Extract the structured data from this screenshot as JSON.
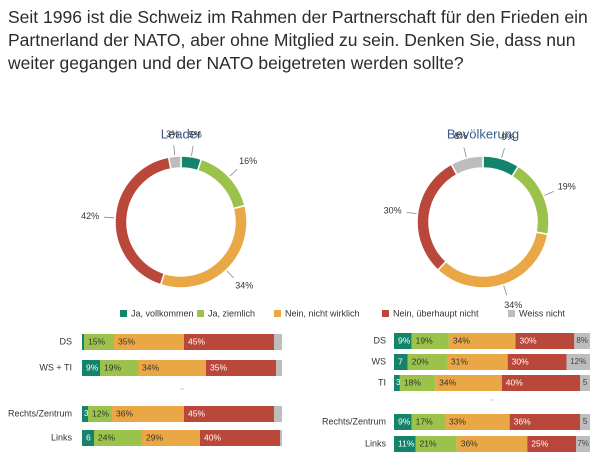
{
  "question": "Seit 1996 ist die Schweiz im Rahmen der Partnerschaft für den Frieden ein Partnerland der NATO, aber ohne Mitglied zu sein. Denken Sie, dass nun weiter gegangen und der NATO beigetreten werden sollte?",
  "colors": {
    "ja_vollkommen": "#13836b",
    "ja_ziemlich": "#9bc24b",
    "nein_nicht_wirklich": "#e9a845",
    "nein_ueberhaupt_nicht": "#b9473a",
    "weiss_nicht": "#bdbdbd",
    "title": "#3a5a8c"
  },
  "chart_data": [
    {
      "type": "pie",
      "title": "Leader",
      "categories": [
        "Ja, vollkommen",
        "Ja, ziemlich",
        "Nein, nicht wirklich",
        "Nein, überhaupt nicht",
        "Weiss nicht"
      ],
      "values": [
        5,
        16,
        34,
        42,
        3
      ],
      "labels": [
        "5%",
        "16%",
        "34%",
        "42%",
        "3%"
      ]
    },
    {
      "type": "pie",
      "title": "Bevölkerung",
      "categories": [
        "Ja, vollkommen",
        "Ja, ziemlich",
        "Nein, nicht wirklich",
        "Nein, überhaupt nicht",
        "Weiss nicht"
      ],
      "values": [
        9,
        19,
        34,
        30,
        8
      ],
      "labels": [
        "9%",
        "19%",
        "34%",
        "30%",
        "8%"
      ]
    },
    {
      "type": "bar",
      "stacked": true,
      "orientation": "horizontal",
      "categories": [
        "DS",
        "WS + TI",
        "",
        "Rechts/Zentrum",
        "Links"
      ],
      "series": [
        {
          "name": "Ja, vollkommen",
          "values": [
            1,
            9,
            0,
            3,
            6
          ],
          "labels": [
            "",
            "9%",
            "",
            "3",
            "6"
          ]
        },
        {
          "name": "Ja, ziemlich",
          "values": [
            15,
            19,
            0,
            12,
            24
          ],
          "labels": [
            "15%",
            "19%",
            "",
            "12%",
            "24%"
          ]
        },
        {
          "name": "Nein, nicht wirklich",
          "values": [
            35,
            34,
            0,
            36,
            29
          ],
          "labels": [
            "35%",
            "34%",
            "",
            "36%",
            "29%"
          ]
        },
        {
          "name": "Nein, überhaupt nicht",
          "values": [
            45,
            35,
            0,
            45,
            40
          ],
          "labels": [
            "45%",
            "35%",
            "",
            "45%",
            "40%"
          ]
        },
        {
          "name": "Weiss nicht",
          "values": [
            4,
            3,
            0,
            4,
            1
          ],
          "labels": [
            "",
            "",
            "",
            "",
            ""
          ]
        }
      ]
    },
    {
      "type": "bar",
      "stacked": true,
      "orientation": "horizontal",
      "categories": [
        "DS",
        "WS",
        "TI",
        "",
        "Rechts/Zentrum",
        "Links"
      ],
      "series": [
        {
          "name": "Ja, vollkommen",
          "values": [
            9,
            7,
            3,
            0,
            9,
            11
          ],
          "labels": [
            "9%",
            "7",
            "3",
            "",
            "9%",
            "11%"
          ]
        },
        {
          "name": "Ja, ziemlich",
          "values": [
            19,
            20,
            18,
            0,
            17,
            21
          ],
          "labels": [
            "19%",
            "20%",
            "18%",
            "",
            "17%",
            "21%"
          ]
        },
        {
          "name": "Nein, nicht wirklich",
          "values": [
            34,
            31,
            34,
            0,
            33,
            36
          ],
          "labels": [
            "34%",
            "31%",
            "34%",
            "",
            "33%",
            "36%"
          ]
        },
        {
          "name": "Nein, überhaupt nicht",
          "values": [
            30,
            30,
            40,
            0,
            36,
            25
          ],
          "labels": [
            "30%",
            "30%",
            "40%",
            "",
            "36%",
            "25%"
          ]
        },
        {
          "name": "Weiss nicht",
          "values": [
            8,
            12,
            5,
            0,
            5,
            7
          ],
          "labels": [
            "8%",
            "12%",
            "5",
            "",
            "5",
            "7%"
          ]
        }
      ]
    }
  ],
  "legend": [
    "Ja, vollkommen",
    "Ja, ziemlich",
    "Nein, nicht wirklich",
    "Nein, überhaupt nicht",
    "Weiss nicht"
  ]
}
